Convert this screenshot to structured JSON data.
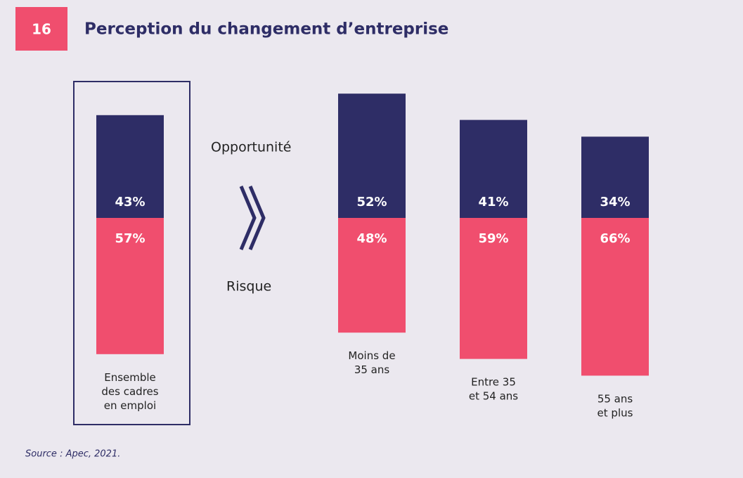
{
  "chart_data": {
    "type": "bar",
    "badge": "16",
    "title": "Perception du changement d’entreprise",
    "categories": [
      "Ensemble\ndes cadres\nen emploi",
      "Moins de\n35 ans",
      "Entre 35\net 54 ans",
      "55 ans\net plus"
    ],
    "series": [
      {
        "name": "Opportunité",
        "color": "#2e2d66",
        "values": [
          43,
          52,
          41,
          34
        ],
        "value_labels": [
          "43%",
          "52%",
          "41%",
          "34%"
        ]
      },
      {
        "name": "Risque",
        "color": "#f04e6e",
        "values": [
          57,
          48,
          59,
          66
        ],
        "value_labels": [
          "57%",
          "48%",
          "59%",
          "66%"
        ]
      }
    ],
    "source": "Source : Apec, 2021."
  }
}
